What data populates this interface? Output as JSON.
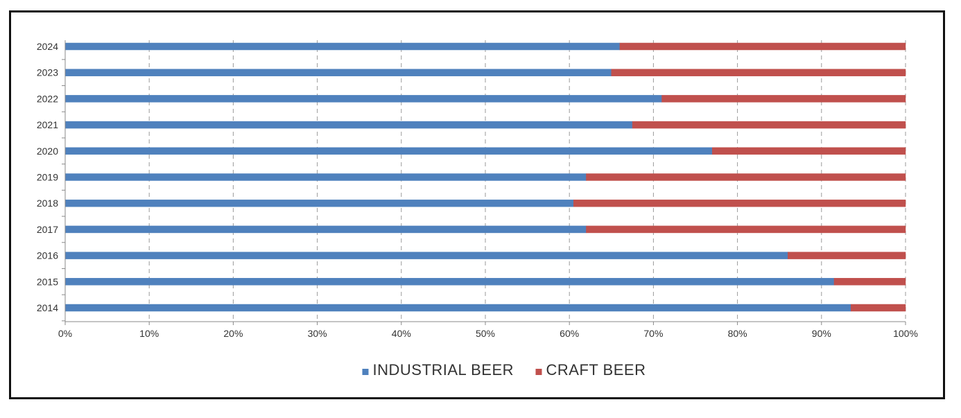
{
  "chart_data": {
    "type": "bar",
    "orientation": "horizontal",
    "stacked": "percent",
    "title": "",
    "xlabel": "",
    "ylabel": "",
    "xlim": [
      0,
      100
    ],
    "x_ticks": [
      "0%",
      "10%",
      "20%",
      "30%",
      "40%",
      "50%",
      "60%",
      "70%",
      "80%",
      "90%",
      "100%"
    ],
    "categories": [
      "2014",
      "2015",
      "2016",
      "2017",
      "2018",
      "2019",
      "2020",
      "2021",
      "2022",
      "2023",
      "2024"
    ],
    "series": [
      {
        "name": "INDUSTRIAL BEER",
        "color": "#4F81BD",
        "values": [
          93.5,
          91.5,
          86,
          62,
          60.5,
          62,
          77,
          67.5,
          71,
          65,
          66
        ]
      },
      {
        "name": "CRAFT BEER",
        "color": "#C0504D",
        "values": [
          6.5,
          8.5,
          14,
          38,
          39.5,
          38,
          23,
          32.5,
          29,
          35,
          34
        ]
      }
    ],
    "grid": "vertical-dashed",
    "legend_position": "bottom-center"
  }
}
